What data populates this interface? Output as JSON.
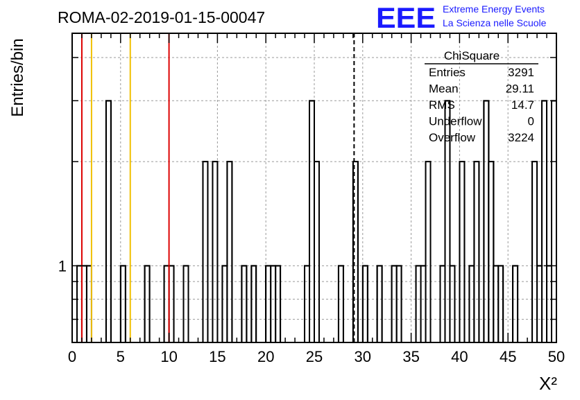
{
  "header": {
    "run_title": "ROMA-02-2019-01-15-00047",
    "logo_text": "EEE",
    "logo_line1": "Extreme Energy Events",
    "logo_line2": "La Scienza nelle Scuole"
  },
  "colors": {
    "logo": "#1a1aff",
    "red_line": "#dd0000",
    "yellow_line": "#f0c000",
    "histogram": "#000000",
    "grid": "#999999"
  },
  "stats": {
    "title": "ChiSquare",
    "rows": [
      {
        "label": "Entries",
        "value": "3291"
      },
      {
        "label": "Mean",
        "value": "29.11"
      },
      {
        "label": "RMS",
        "value": "14.7"
      },
      {
        "label": "Underflow",
        "value": "0"
      },
      {
        "label": "Overflow",
        "value": "3224"
      }
    ]
  },
  "chart_data": {
    "type": "histogram",
    "title": "ROMA-02-2019-01-15-00047",
    "xlabel": "X²",
    "ylabel": "Entries/bin",
    "xlim": [
      0,
      50
    ],
    "ylog": true,
    "ylim": [
      0.6,
      4.7
    ],
    "grid": true,
    "bin_width": 0.5,
    "xticks": [
      "0",
      "5",
      "10",
      "15",
      "20",
      "25",
      "30",
      "35",
      "40",
      "45",
      "50"
    ],
    "yticks": [
      "1"
    ],
    "bins": [
      [
        0.5,
        1
      ],
      [
        1.0,
        1
      ],
      [
        1.5,
        1
      ],
      [
        3.5,
        3
      ],
      [
        5.0,
        1
      ],
      [
        7.5,
        1
      ],
      [
        9.5,
        1
      ],
      [
        10.0,
        1
      ],
      [
        11.5,
        1
      ],
      [
        13.5,
        2
      ],
      [
        14.5,
        2
      ],
      [
        15.5,
        1
      ],
      [
        16.0,
        2
      ],
      [
        17.5,
        1
      ],
      [
        18.5,
        1
      ],
      [
        20.0,
        1
      ],
      [
        20.5,
        1
      ],
      [
        21.0,
        1
      ],
      [
        24.0,
        1
      ],
      [
        24.5,
        3
      ],
      [
        25.0,
        2
      ],
      [
        27.5,
        1
      ],
      [
        29.0,
        2
      ],
      [
        30.0,
        1
      ],
      [
        31.5,
        1
      ],
      [
        33.0,
        1
      ],
      [
        33.5,
        1
      ],
      [
        35.5,
        1
      ],
      [
        36.0,
        1
      ],
      [
        36.5,
        2
      ],
      [
        38.0,
        1
      ],
      [
        38.5,
        3
      ],
      [
        39.0,
        1
      ],
      [
        40.0,
        2
      ],
      [
        41.0,
        1
      ],
      [
        41.5,
        2
      ],
      [
        42.5,
        3
      ],
      [
        43.0,
        2
      ],
      [
        43.5,
        1
      ],
      [
        44.0,
        1
      ],
      [
        45.5,
        1
      ],
      [
        47.5,
        2
      ],
      [
        48.0,
        1
      ],
      [
        48.5,
        3
      ],
      [
        49.0,
        1
      ],
      [
        49.5,
        3
      ]
    ],
    "vertical_lines": [
      {
        "x": 1,
        "color": "red"
      },
      {
        "x": 2,
        "color": "yellow"
      },
      {
        "x": 6,
        "color": "yellow"
      },
      {
        "x": 10,
        "color": "red"
      },
      {
        "x": 29.11,
        "color": "black",
        "style": "dashed"
      }
    ]
  }
}
